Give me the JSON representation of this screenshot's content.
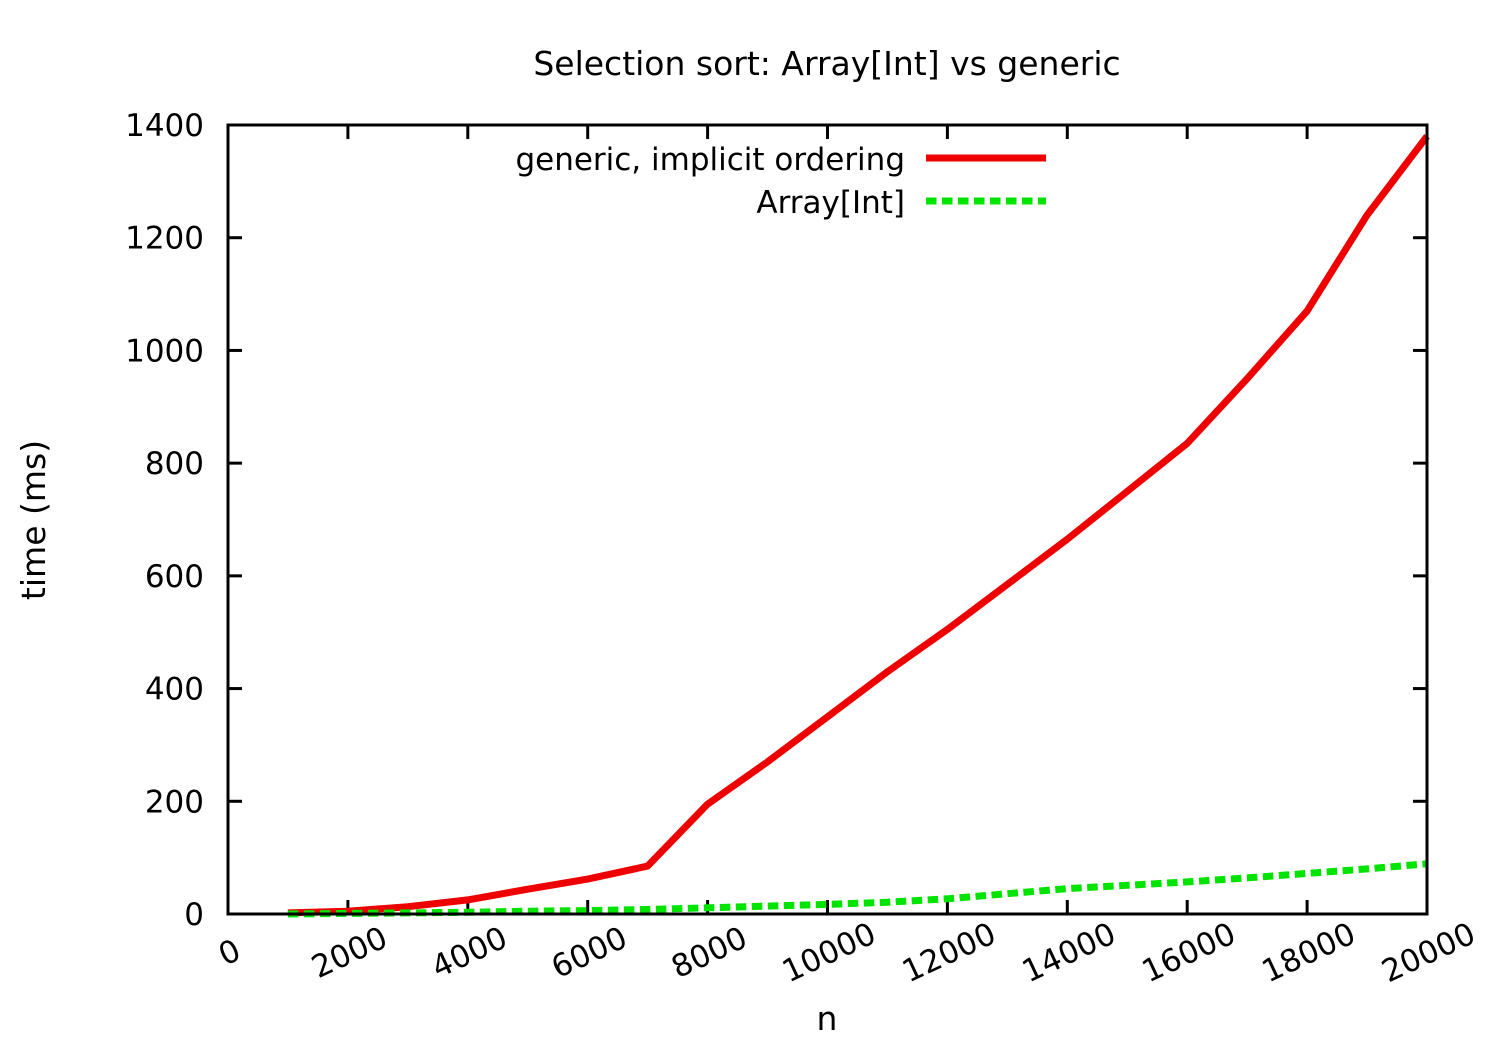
{
  "chart_data": {
    "type": "line",
    "title": "Selection sort: Array[Int] vs generic",
    "xlabel": "n",
    "ylabel": "time (ms)",
    "xlim": [
      0,
      20000
    ],
    "ylim": [
      0,
      1400
    ],
    "x_ticks": [
      0,
      2000,
      4000,
      6000,
      8000,
      10000,
      12000,
      14000,
      16000,
      18000,
      20000
    ],
    "y_ticks": [
      0,
      200,
      400,
      600,
      800,
      1000,
      1200,
      1400
    ],
    "grid": false,
    "legend_position": "top-center-inside",
    "x": [
      1000,
      2000,
      3000,
      4000,
      5000,
      6000,
      7000,
      8000,
      9000,
      10000,
      11000,
      12000,
      13000,
      14000,
      15000,
      16000,
      17000,
      18000,
      19000,
      20000
    ],
    "series": [
      {
        "name": "generic, implicit ordering",
        "color": "#ee0000",
        "style": "solid",
        "values": [
          2,
          5,
          13,
          25,
          44,
          62,
          85,
          195,
          270,
          350,
          430,
          505,
          585,
          665,
          750,
          835,
          950,
          1070,
          1240,
          1380
        ]
      },
      {
        "name": "Array[Int]",
        "color": "#00e400",
        "style": "dashed",
        "values": [
          0,
          1,
          2,
          3,
          5,
          6,
          8,
          11,
          14,
          17,
          21,
          27,
          36,
          45,
          51,
          57,
          64,
          72,
          80,
          89
        ]
      }
    ]
  }
}
